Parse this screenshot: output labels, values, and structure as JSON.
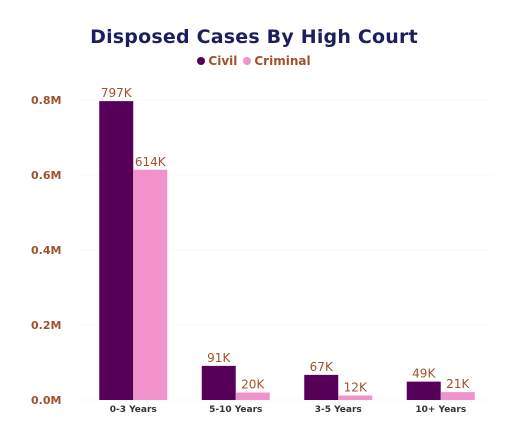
{
  "chart_data": {
    "type": "bar",
    "title": "Disposed Cases By High Court",
    "categories": [
      "0-3 Years",
      "5-10 Years",
      "3-5 Years",
      "10+ Years"
    ],
    "series": [
      {
        "name": "Civil",
        "values": [
          797000,
          91000,
          67000,
          49000
        ],
        "labels": [
          "797K",
          "91K",
          "67K",
          "49K"
        ],
        "color": "#560059"
      },
      {
        "name": "Criminal",
        "values": [
          614000,
          20000,
          12000,
          21000
        ],
        "labels": [
          "614K",
          "20K",
          "12K",
          "21K"
        ],
        "color": "#f093cc"
      }
    ],
    "ylim": [
      0,
      800000
    ],
    "yticks": [
      0,
      200000,
      400000,
      600000,
      800000
    ],
    "ytick_labels": [
      "0.0M",
      "0.2M",
      "0.4M",
      "0.6M",
      "0.8M"
    ],
    "legend_position": "top-center",
    "grid": true
  }
}
